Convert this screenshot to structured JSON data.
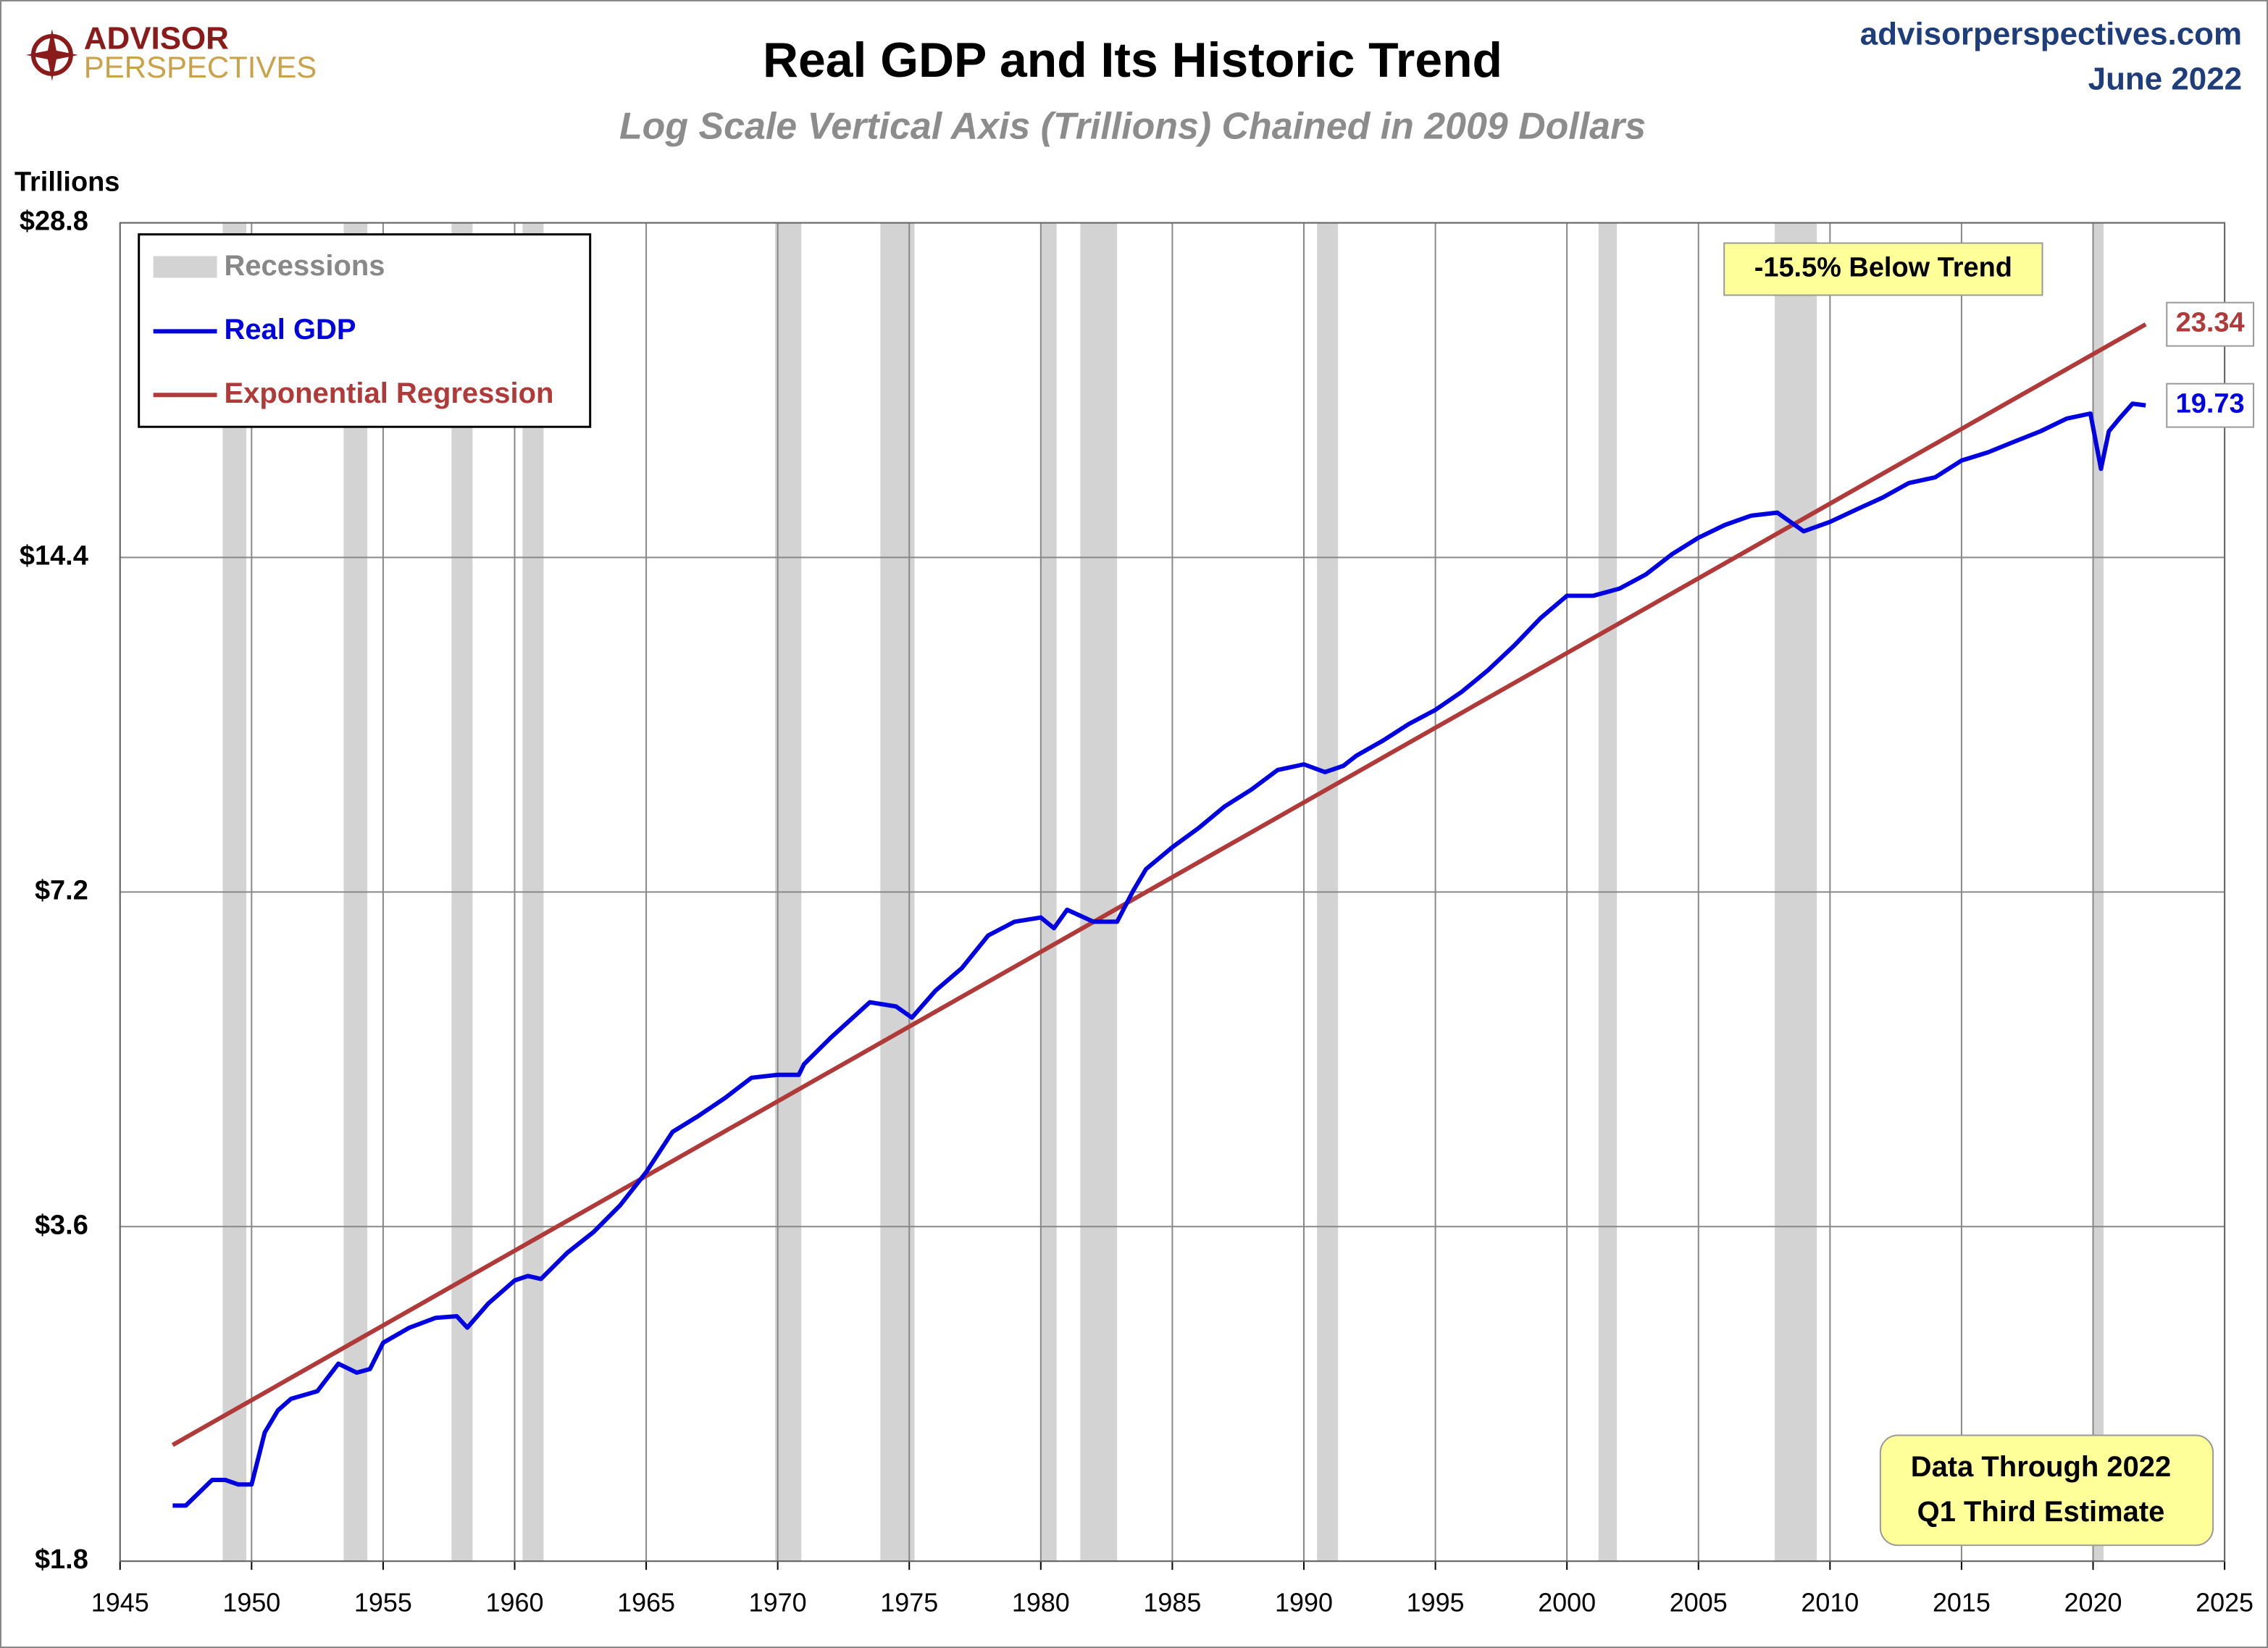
{
  "header": {
    "logo_top": "ADVISOR",
    "logo_bottom": "PERSPECTIVES",
    "site": "advisorperspectives.com",
    "date": "June 2022"
  },
  "chart_data": {
    "type": "line",
    "title": "Real GDP and Its Historic Trend",
    "subtitle": "Log Scale Vertical Axis (Trillions) Chained in 2009 Dollars",
    "y_label": "Trillions",
    "log_scale": true,
    "grid": true,
    "legend": "top-left",
    "xlim": [
      1945,
      2025
    ],
    "xticks": [
      1945,
      1950,
      1955,
      1960,
      1965,
      1970,
      1975,
      1980,
      1985,
      1990,
      1995,
      2000,
      2005,
      2010,
      2015,
      2020,
      2025
    ],
    "ylim": [
      1.8,
      28.8
    ],
    "yticks": [
      {
        "value": 1.8,
        "label": "$1.8"
      },
      {
        "value": 3.6,
        "label": "$3.6"
      },
      {
        "value": 7.2,
        "label": "$7.2"
      },
      {
        "value": 14.4,
        "label": "$14.4"
      },
      {
        "value": 28.8,
        "label": "$28.8"
      }
    ],
    "recessions_name": "Recessions",
    "recessions_color": "#d3d3d3",
    "recessions": [
      [
        1948.9,
        1949.8
      ],
      [
        1953.5,
        1954.4
      ],
      [
        1957.6,
        1958.4
      ],
      [
        1960.3,
        1961.1
      ],
      [
        1969.9,
        1970.9
      ],
      [
        1973.9,
        1975.2
      ],
      [
        1980.0,
        1980.6
      ],
      [
        1981.5,
        1982.9
      ],
      [
        1990.5,
        1991.3
      ],
      [
        2001.2,
        2001.9
      ],
      [
        2007.9,
        2009.5
      ],
      [
        2020.0,
        2020.4
      ]
    ],
    "series": [
      {
        "name": "Real GDP",
        "color": "#0000e0",
        "x": [
          1947,
          1947.5,
          1948.5,
          1949,
          1949.5,
          1950,
          1950.5,
          1951,
          1951.5,
          1952.5,
          1953.3,
          1954,
          1954.5,
          1955,
          1956,
          1957,
          1957.8,
          1958.2,
          1959,
          1960,
          1960.5,
          1961,
          1962,
          1963,
          1964,
          1965,
          1966,
          1967,
          1968,
          1969,
          1970,
          1970.8,
          1971,
          1972,
          1973.5,
          1974.5,
          1975.1,
          1976,
          1977,
          1978,
          1979,
          1980,
          1980.5,
          1981,
          1982,
          1982.9,
          1983.5,
          1984,
          1985,
          1986,
          1987,
          1988,
          1989,
          1990,
          1990.8,
          1991.5,
          1992,
          1993,
          1994,
          1995,
          1996,
          1997,
          1998,
          1999,
          2000,
          2001,
          2002,
          2003,
          2004,
          2005,
          2006,
          2007,
          2008,
          2009,
          2010,
          2011,
          2012,
          2013,
          2014,
          2015,
          2016,
          2017,
          2018,
          2019,
          2019.9,
          2020.3,
          2020.6,
          2021,
          2021.5,
          2022
        ],
        "values": [
          2.02,
          2.02,
          2.13,
          2.13,
          2.11,
          2.11,
          2.35,
          2.46,
          2.52,
          2.56,
          2.71,
          2.66,
          2.68,
          2.83,
          2.92,
          2.98,
          2.99,
          2.92,
          3.07,
          3.22,
          3.25,
          3.23,
          3.41,
          3.56,
          3.76,
          4.03,
          4.38,
          4.53,
          4.7,
          4.9,
          4.93,
          4.93,
          5.04,
          5.32,
          5.73,
          5.68,
          5.55,
          5.87,
          6.15,
          6.58,
          6.77,
          6.83,
          6.68,
          6.94,
          6.77,
          6.77,
          7.21,
          7.55,
          7.9,
          8.22,
          8.6,
          8.9,
          9.27,
          9.38,
          9.23,
          9.35,
          9.55,
          9.85,
          10.2,
          10.5,
          10.9,
          11.4,
          12.0,
          12.7,
          13.3,
          13.3,
          13.5,
          13.9,
          14.5,
          15.0,
          15.4,
          15.7,
          15.8,
          15.2,
          15.5,
          15.9,
          16.3,
          16.8,
          17.0,
          17.6,
          17.9,
          18.3,
          18.7,
          19.2,
          19.4,
          17.3,
          18.7,
          19.2,
          19.8,
          19.73
        ]
      },
      {
        "name": "Exponential Regression",
        "color": "#b03a3a",
        "x": [
          1947,
          2022
        ],
        "values": [
          2.29,
          23.34
        ]
      }
    ],
    "annotations": [
      "-15.5% Below Trend",
      "Data Through 2022",
      "Q1 Third Estimate"
    ]
  }
}
